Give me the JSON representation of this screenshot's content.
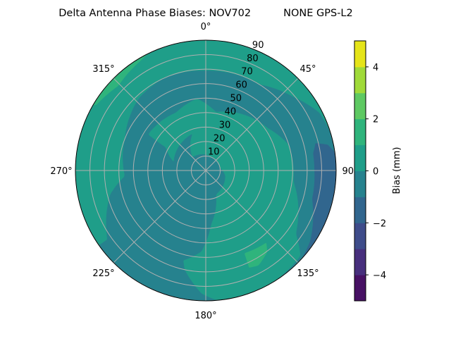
{
  "chart_data": {
    "type": "contour",
    "projection": "polar",
    "title": "Delta Antenna Phase Biases: NOV702          NONE GPS-L2",
    "theta_direction": "clockwise",
    "theta_zero": "north",
    "theta_ticks": [
      "0°",
      "45°",
      "90°",
      "135°",
      "180°",
      "225°",
      "270°",
      "315°"
    ],
    "theta_tick_values": [
      0,
      45,
      90,
      135,
      180,
      225,
      270,
      315
    ],
    "r_ticks": [
      "10",
      "20",
      "30",
      "40",
      "50",
      "60",
      "70",
      "80",
      "90"
    ],
    "r_tick_values": [
      10,
      20,
      30,
      40,
      50,
      60,
      70,
      80,
      90
    ],
    "rlim": [
      0,
      90
    ],
    "grid": true,
    "colormap": "viridis",
    "levels": [
      -5,
      -4,
      -3,
      -2,
      -1,
      0,
      1,
      2,
      3,
      4,
      5
    ],
    "level_colors": [
      "#471164",
      "#472f7d",
      "#3e4c8a",
      "#31668e",
      "#26828e",
      "#1f9e89",
      "#2fb47c",
      "#5ec962",
      "#a0da39",
      "#e5e419"
    ],
    "colorbar": {
      "label": "Bias (mm)",
      "ticks": [
        "−4",
        "−2",
        "0",
        "2",
        "4"
      ],
      "tick_values": [
        -4,
        -2,
        0,
        2,
        4
      ],
      "range": [
        -5,
        5
      ]
    },
    "background_band": [
      -1,
      0
    ],
    "regions": [
      {
        "band": [
          0,
          1
        ],
        "points": [
          [
            235,
            90
          ],
          [
            270,
            90
          ],
          [
            300,
            90
          ],
          [
            330,
            90
          ],
          [
            0,
            90
          ],
          [
            30,
            90
          ],
          [
            60,
            90
          ],
          [
            74,
            90
          ],
          [
            63,
            88
          ],
          [
            50,
            79
          ],
          [
            32,
            70
          ],
          [
            0,
            69
          ],
          [
            336,
            70
          ],
          [
            317,
            68
          ],
          [
            291,
            60
          ],
          [
            266,
            56
          ],
          [
            256,
            68
          ],
          [
            235,
            83
          ]
        ]
      },
      {
        "band": [
          0,
          1
        ],
        "points": [
          [
            302,
            47
          ],
          [
            333,
            45
          ],
          [
            353,
            50
          ],
          [
            10,
            41
          ],
          [
            27,
            45
          ],
          [
            56,
            52
          ],
          [
            73,
            60
          ],
          [
            97,
            61
          ],
          [
            125,
            76
          ],
          [
            132,
            88
          ],
          [
            147,
            90
          ],
          [
            167,
            90
          ],
          [
            175,
            90
          ],
          [
            182,
            85
          ],
          [
            192,
            70
          ],
          [
            194,
            64
          ],
          [
            183,
            56
          ],
          [
            174,
            37
          ],
          [
            157,
            18
          ],
          [
            106,
            14
          ],
          [
            80,
            10
          ],
          [
            23,
            10
          ],
          [
            315,
            13
          ],
          [
            340,
            27
          ],
          [
            312,
            25
          ],
          [
            285,
            23
          ],
          [
            300,
            32
          ]
        ]
      },
      {
        "band": [
          1,
          2
        ],
        "points": [
          [
            300,
            90
          ],
          [
            315,
            90
          ],
          [
            334,
            90
          ],
          [
            329,
            88
          ],
          [
            314,
            84
          ],
          [
            301,
            88
          ]
        ]
      },
      {
        "band": [
          1,
          2
        ],
        "points": [
          [
            155,
            63
          ],
          [
            140,
            65
          ],
          [
            143,
            70.5
          ],
          [
            151,
            75
          ],
          [
            156,
            73.5
          ]
        ]
      },
      {
        "band": [
          -2,
          -1
        ],
        "points": [
          [
            76,
            78
          ],
          [
            78,
            86
          ],
          [
            82,
            90
          ],
          [
            100,
            90
          ],
          [
            120,
            90
          ],
          [
            133,
            90
          ],
          [
            124,
            87
          ],
          [
            105,
            76
          ],
          [
            90,
            75
          ],
          [
            81,
            75
          ]
        ]
      }
    ]
  }
}
